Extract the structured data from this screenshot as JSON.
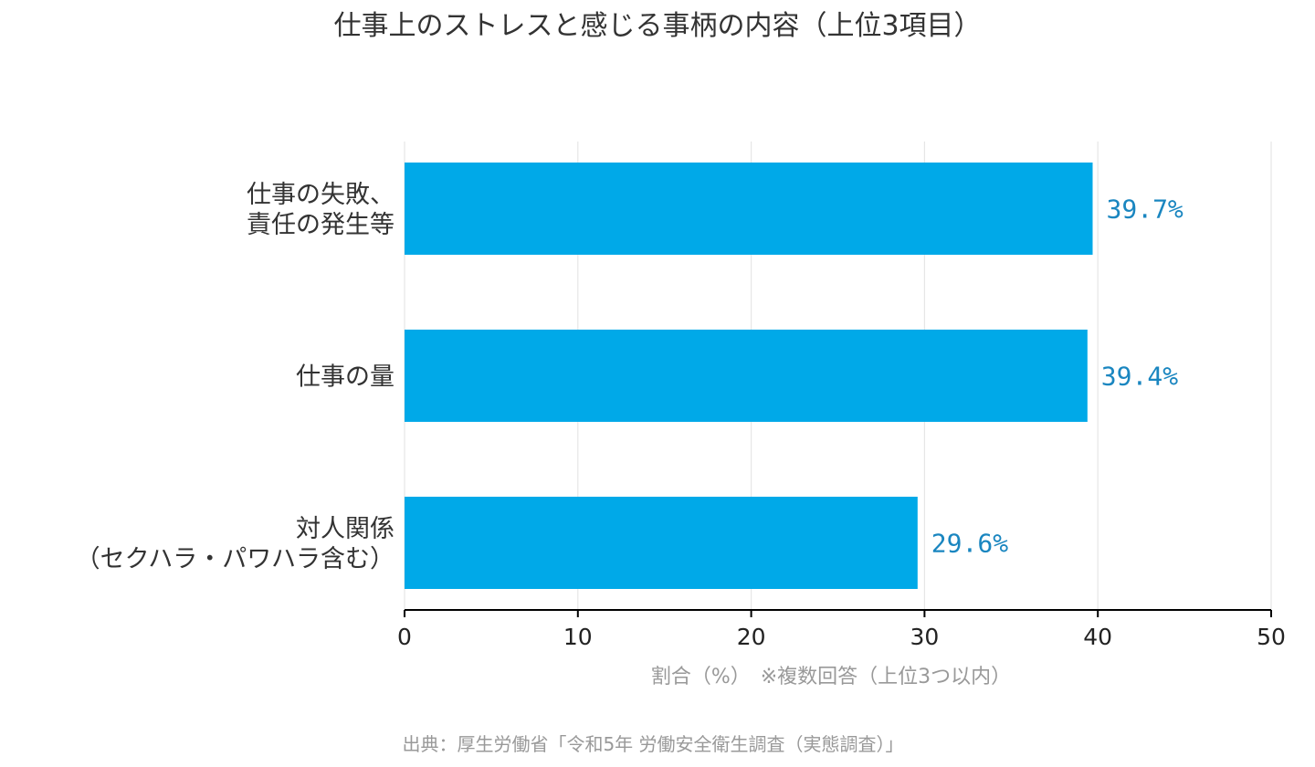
{
  "chart_data": {
    "type": "bar",
    "orientation": "horizontal",
    "title": "仕事上のストレスと感じる事柄の内容（上位3項目）",
    "categories": [
      [
        "仕事の失敗、",
        "責任の発生等"
      ],
      [
        "仕事の量"
      ],
      [
        "対人関係",
        "（セクハラ・パワハラ含む）"
      ]
    ],
    "values": [
      39.7,
      39.4,
      29.6
    ],
    "data_labels": [
      "39.7%",
      "39.4%",
      "29.6%"
    ],
    "xlabel": "割合（%）　※複数回答（上位3つ以内）",
    "ylabel": "",
    "xlim": [
      0,
      50
    ],
    "xticks": [
      0,
      10,
      20,
      30,
      40,
      50
    ],
    "grid": "vertical",
    "legend": "none",
    "source": "出典：厚生労働省「令和5年 労働安全衛生調査（実態調査）」",
    "colors": {
      "bar": "#00a9e8",
      "data_label": "#1a86c0",
      "grid": "#e6e6e6",
      "axis": "#000000",
      "text": "#333333",
      "muted": "#999999"
    }
  }
}
